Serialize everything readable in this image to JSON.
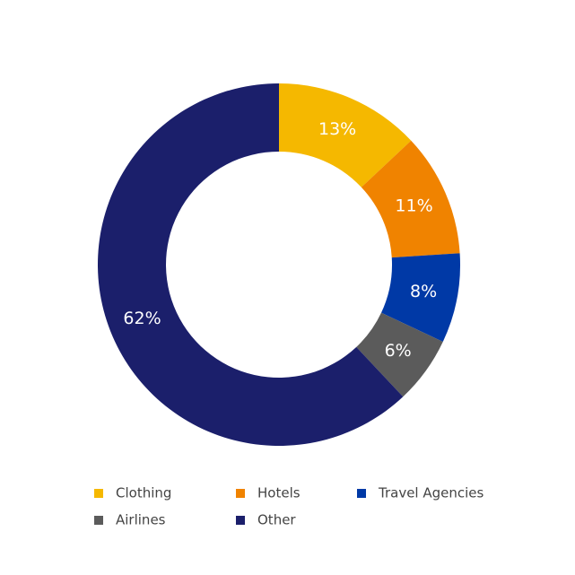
{
  "chart_data": {
    "type": "donut",
    "categories": [
      "Clothing",
      "Hotels",
      "Travel Agencies",
      "Airlines",
      "Other"
    ],
    "values": [
      13,
      11,
      8,
      6,
      62
    ],
    "value_labels": [
      "13%",
      "11%",
      "8%",
      "6%",
      "62%"
    ],
    "colors": [
      "#f5b800",
      "#f08300",
      "#0039a6",
      "#5b5b5b",
      "#1b1f6b"
    ],
    "legend": "bottom"
  }
}
